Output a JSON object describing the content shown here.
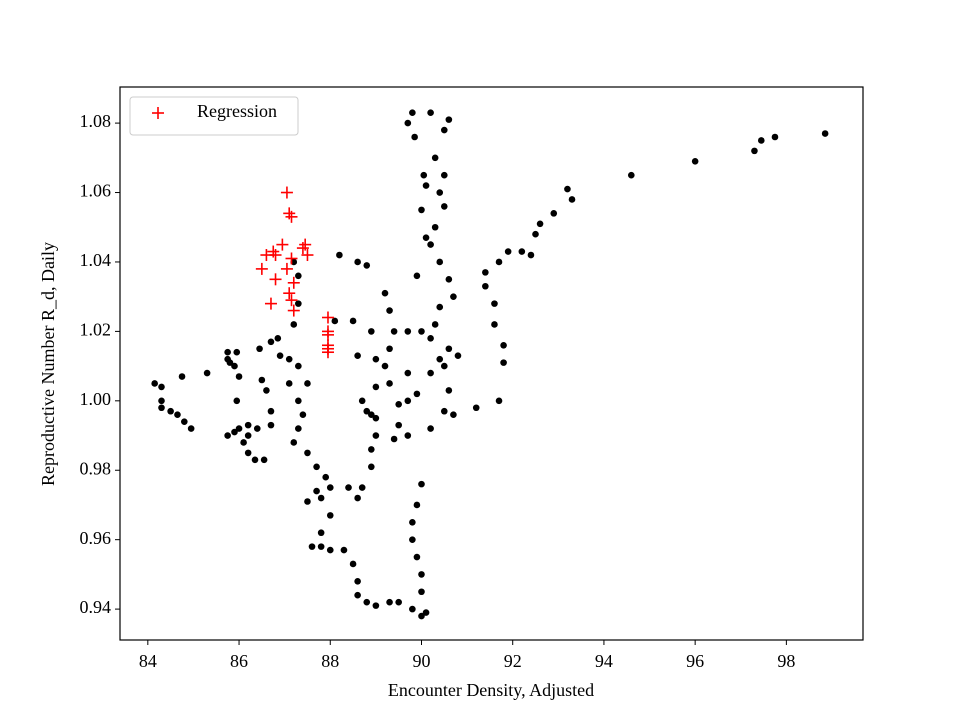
{
  "chart_data": {
    "type": "scatter",
    "xlabel": "Encounter Density, Adjusted",
    "ylabel": "Reproductive Number R_d, Daily",
    "xlim": [
      83.39,
      99.68
    ],
    "ylim": [
      0.9311,
      1.0904
    ],
    "xticks": [
      84,
      86,
      88,
      90,
      92,
      94,
      96,
      98
    ],
    "yticks": [
      0.94,
      0.96,
      0.98,
      {
        "value": 1,
        "label": "1.00"
      },
      1.02,
      1.04,
      1.06,
      1.08
    ],
    "legend": "upper left",
    "series": [
      {
        "color": "#000000",
        "marker": "o",
        "x": [
          84.15,
          84.3,
          84.3,
          84.3,
          84.5,
          84.65,
          84.8,
          84.95,
          84.75,
          85.3,
          85.75,
          85.75,
          85.95,
          85.9,
          86.0,
          85.8,
          85.95,
          85.9,
          85.75,
          86.0,
          86.2,
          86.4,
          86.1,
          86.2,
          86.35,
          86.55,
          86.5,
          86.6,
          86.7,
          86.7,
          86.45,
          86.7,
          86.85,
          86.9,
          87.1,
          87.3,
          87.1,
          87.3,
          87.4,
          87.3,
          87.2,
          87.5,
          87.7,
          87.9,
          88.0,
          87.8,
          87.5,
          87.7,
          88.0,
          87.8,
          87.6,
          87.8,
          88.0,
          88.3,
          88.5,
          88.6,
          88.6,
          88.8,
          89.0,
          89.3,
          89.5,
          89.8,
          90.0,
          90.1,
          90.0,
          90.0,
          89.9,
          89.8,
          89.8,
          89.9,
          90.0,
          88.7,
          88.4,
          88.6,
          88.9,
          88.9,
          89.0,
          88.9,
          89.0,
          89.2,
          89.3,
          89.4,
          89.3,
          89.2,
          88.8,
          88.6,
          88.2,
          88.1,
          88.5,
          88.9,
          89.0,
          88.7,
          88.8,
          89.0,
          89.5,
          89.5,
          89.3,
          89.7,
          89.7,
          89.9,
          90.2,
          90.5,
          90.8,
          90.6,
          90.5,
          90.7,
          90.2,
          89.7,
          89.4,
          89.7,
          90.0,
          90.2,
          90.4,
          90.6,
          90.3,
          90.4,
          90.6,
          90.7,
          90.4,
          90.2,
          90.3,
          90.5,
          90.4,
          90.5,
          90.3,
          90.5,
          90.6,
          90.2,
          90.05,
          90.1,
          90.0,
          90.1,
          89.9,
          89.8,
          89.85,
          89.7,
          91.2,
          91.7,
          91.8,
          91.8,
          91.6,
          91.6,
          91.4,
          91.4,
          91.7,
          91.9,
          92.2,
          92.4,
          92.5,
          92.6,
          92.9,
          93.3,
          93.2,
          94.6,
          96.0,
          97.3,
          97.45,
          97.75,
          98.85,
          87.2,
          87.3,
          87.3,
          87.2,
          87.5,
          88.6,
          86.2
        ],
        "values": [
          1.005,
          1.004,
          1.0,
          0.998,
          0.997,
          0.996,
          0.994,
          0.992,
          1.007,
          1.008,
          1.014,
          1.012,
          1.014,
          1.01,
          1.007,
          1.011,
          1.0,
          0.991,
          0.99,
          0.992,
          0.993,
          0.992,
          0.988,
          0.985,
          0.983,
          0.983,
          1.006,
          1.003,
          0.997,
          0.993,
          1.015,
          1.017,
          1.018,
          1.013,
          1.012,
          1.01,
          1.005,
          1.0,
          0.996,
          0.992,
          0.988,
          0.985,
          0.981,
          0.978,
          0.975,
          0.972,
          0.971,
          0.974,
          0.967,
          0.962,
          0.958,
          0.958,
          0.957,
          0.957,
          0.953,
          0.948,
          0.944,
          0.942,
          0.941,
          0.942,
          0.942,
          0.94,
          0.938,
          0.939,
          0.945,
          0.95,
          0.955,
          0.96,
          0.965,
          0.97,
          0.976,
          0.975,
          0.975,
          0.972,
          0.986,
          0.981,
          0.99,
          0.996,
          1.004,
          1.01,
          1.015,
          1.02,
          1.026,
          1.031,
          1.039,
          1.04,
          1.042,
          1.023,
          1.023,
          1.02,
          1.012,
          1.0,
          0.997,
          0.995,
          0.993,
          0.999,
          1.005,
          1.008,
          1.0,
          1.002,
          1.008,
          1.01,
          1.013,
          1.003,
          0.997,
          0.996,
          0.992,
          0.99,
          0.989,
          1.02,
          1.02,
          1.018,
          1.012,
          1.015,
          1.022,
          1.027,
          1.035,
          1.03,
          1.04,
          1.045,
          1.05,
          1.056,
          1.06,
          1.065,
          1.07,
          1.078,
          1.081,
          1.083,
          1.065,
          1.062,
          1.055,
          1.047,
          1.036,
          1.083,
          1.076,
          1.08,
          0.998,
          1.0,
          1.011,
          1.016,
          1.022,
          1.028,
          1.033,
          1.037,
          1.04,
          1.043,
          1.043,
          1.042,
          1.048,
          1.051,
          1.054,
          1.058,
          1.061,
          1.065,
          1.069,
          1.072,
          1.075,
          1.076,
          1.077,
          1.04,
          1.036,
          1.028,
          1.022,
          1.005,
          1.013,
          0.99
        ]
      },
      {
        "name": "Regression",
        "color": "#ff0000",
        "marker": "+",
        "x": [
          87.05,
          87.1,
          87.15,
          86.95,
          87.45,
          87.4,
          87.5,
          86.6,
          86.75,
          86.8,
          87.15,
          87.05,
          86.5,
          86.8,
          87.2,
          87.1,
          87.15,
          86.7,
          87.2,
          87.95,
          87.95,
          87.95,
          87.95,
          87.95,
          87.95
        ],
        "values": [
          1.06,
          1.054,
          1.053,
          1.045,
          1.045,
          1.044,
          1.042,
          1.042,
          1.043,
          1.042,
          1.041,
          1.038,
          1.038,
          1.035,
          1.034,
          1.031,
          1.029,
          1.028,
          1.026,
          1.024,
          1.02,
          1.019,
          1.016,
          1.015,
          1.014
        ]
      }
    ]
  }
}
